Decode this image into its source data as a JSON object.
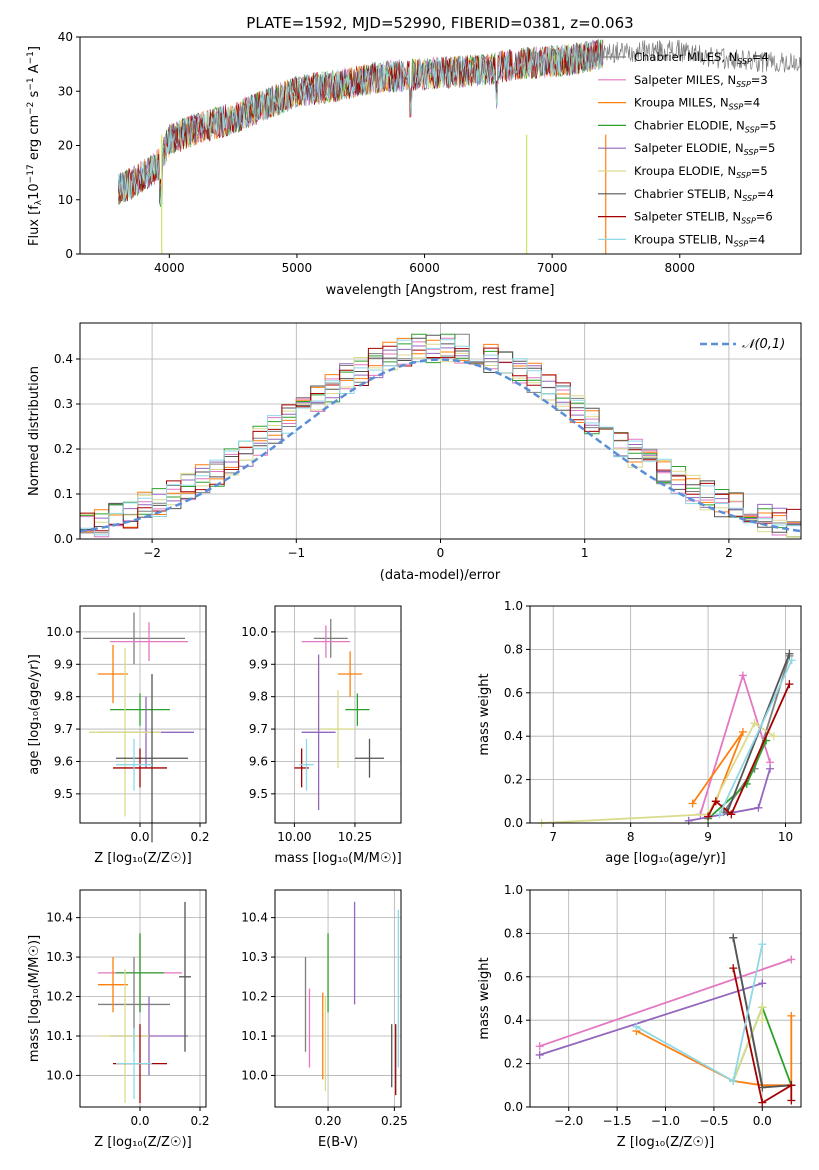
{
  "colors": [
    "#7f7f7f",
    "#e377c2",
    "#ff7f0e",
    "#2ca02c",
    "#9467bd",
    "#dbdb8d",
    "#555555",
    "#a50000",
    "#8fd8e6",
    "#3b7dd8",
    "#c7e86b"
  ],
  "chart_data": [
    {
      "type": "line",
      "title": "PLATE=1592, MJD=52990, FIBERID=0381, z=0.063",
      "xlabel": "wavelength [Angstrom, rest frame]",
      "ylabel": "Flux [fλ10⁻¹⁷ erg cm⁻² s⁻¹ A⁻¹]",
      "xlim": [
        3300,
        8950
      ],
      "ylim": [
        0,
        40
      ],
      "xticks": [
        4000,
        5000,
        6000,
        7000,
        8000
      ],
      "yticks": [
        0,
        10,
        20,
        30,
        40
      ],
      "legend": "right",
      "series": [
        {
          "name": "Chabrier MILES, N_SSP=4"
        },
        {
          "name": "Salpeter MILES, N_SSP=3"
        },
        {
          "name": "Kroupa MILES, N_SSP=4"
        },
        {
          "name": "Chabrier ELODIE, N_SSP=5"
        },
        {
          "name": "Salpeter ELODIE, N_SSP=5"
        },
        {
          "name": "Kroupa ELODIE, N_SSP=5"
        },
        {
          "name": "Chabrier STELIB, N_SSP=4"
        },
        {
          "name": "Salpeter STELIB, N_SSP=6"
        },
        {
          "name": "Kroupa STELIB, N_SSP=4"
        }
      ],
      "continuum": {
        "x": [
          3600,
          3700,
          3900,
          4000,
          4200,
          4500,
          4800,
          5000,
          5300,
          5600,
          5900,
          6200,
          6500,
          6700,
          7000,
          7200,
          7300,
          7400,
          7700,
          8000,
          8300,
          8600,
          8900
        ],
        "y": [
          12,
          13,
          16,
          21,
          23,
          25,
          28,
          30,
          31,
          32.5,
          33,
          33.5,
          34,
          35,
          35.5,
          36,
          36.5,
          37,
          37.5,
          37.5,
          36,
          35.5,
          35
        ]
      },
      "data_spectrum": {
        "x_start": 7200,
        "x_end": 8950
      }
    },
    {
      "type": "step",
      "xlabel": "(data-model)/error",
      "ylabel": "Normed distribution",
      "xlim": [
        -2.5,
        2.5
      ],
      "ylim": [
        0,
        0.48
      ],
      "xticks": [
        -2,
        -1,
        0,
        1,
        2
      ],
      "yticks": [
        0.0,
        0.1,
        0.2,
        0.3,
        0.4
      ],
      "grid": true,
      "legend": "top-right",
      "reference": {
        "label": "𝒩(0,1)",
        "mean": 0,
        "sigma": 1
      },
      "bin_width": 0.1
    },
    {
      "type": "errorbar",
      "xlabel": "Z [log₁₀(Z/Z☉)]",
      "ylabel": "age  [log₁₀(age/yr)]",
      "xlim": [
        -0.2,
        0.22
      ],
      "ylim": [
        9.41,
        10.08
      ],
      "xticks": [
        0.0,
        0.2
      ],
      "yticks": [
        9.5,
        9.6,
        9.7,
        9.8,
        9.9,
        10.0
      ],
      "grid": true,
      "points": [
        {
          "x": -0.02,
          "y": 9.98,
          "xerr": 0.17,
          "yerr": 0.08
        },
        {
          "x": 0.03,
          "y": 9.97,
          "xerr": 0.13,
          "yerr": 0.06
        },
        {
          "x": -0.09,
          "y": 9.87,
          "xerr": 0.05,
          "yerr": 0.09
        },
        {
          "x": 0.0,
          "y": 9.76,
          "xerr": 0.1,
          "yerr": 0.05
        },
        {
          "x": 0.02,
          "y": 9.69,
          "xerr": 0.16,
          "yerr": 0.11
        },
        {
          "x": -0.05,
          "y": 9.69,
          "xerr": 0.12,
          "yerr": 0.26
        },
        {
          "x": 0.04,
          "y": 9.61,
          "xerr": 0.12,
          "yerr": 0.26
        },
        {
          "x": 0.0,
          "y": 9.58,
          "xerr": 0.09,
          "yerr": 0.06
        },
        {
          "x": -0.02,
          "y": 9.59,
          "xerr": 0.06,
          "yerr": 0.08
        }
      ]
    },
    {
      "type": "errorbar",
      "xlabel": "mass [log₁₀(M/M☉)]",
      "ylabel": "",
      "xlim": [
        9.92,
        10.44
      ],
      "ylim": [
        9.41,
        10.08
      ],
      "xticks": [
        10.0,
        10.25
      ],
      "xtick_labels": [
        "10.00",
        "10.25"
      ],
      "yticks": [
        9.5,
        9.6,
        9.7,
        9.8,
        9.9,
        10.0
      ],
      "grid": true,
      "points": [
        {
          "x": 10.15,
          "y": 9.98,
          "xerr": 0.07,
          "yerr": 0.06
        },
        {
          "x": 10.13,
          "y": 9.97,
          "xerr": 0.1,
          "yerr": 0.05
        },
        {
          "x": 10.23,
          "y": 9.87,
          "xerr": 0.05,
          "yerr": 0.07
        },
        {
          "x": 10.26,
          "y": 9.76,
          "xerr": 0.05,
          "yerr": 0.05
        },
        {
          "x": 10.1,
          "y": 9.69,
          "xerr": 0.07,
          "yerr": 0.24
        },
        {
          "x": 10.18,
          "y": 9.7,
          "xerr": 0.07,
          "yerr": 0.12
        },
        {
          "x": 10.31,
          "y": 9.61,
          "xerr": 0.06,
          "yerr": 0.06
        },
        {
          "x": 10.03,
          "y": 9.58,
          "xerr": 0.03,
          "yerr": 0.06
        },
        {
          "x": 10.05,
          "y": 9.59,
          "xerr": 0.03,
          "yerr": 0.08
        }
      ]
    },
    {
      "type": "line",
      "xlabel": "age  [log₁₀(age/yr)]",
      "ylabel": "mass weight",
      "xlim": [
        6.7,
        10.2
      ],
      "ylim": [
        0,
        1.0
      ],
      "xticks": [
        7,
        8,
        9,
        10
      ],
      "yticks": [
        0.0,
        0.2,
        0.4,
        0.6,
        0.8,
        1.0
      ],
      "grid": true,
      "series": [
        {
          "x": [
            9.2,
            9.6,
            10.05
          ],
          "y": [
            0.05,
            0.25,
            0.77
          ]
        },
        {
          "x": [
            8.9,
            9.45,
            9.8
          ],
          "y": [
            0.04,
            0.68,
            0.28
          ]
        },
        {
          "x": [
            8.8,
            9.45,
            9.1
          ],
          "y": [
            0.09,
            0.42,
            0.1
          ]
        },
        {
          "x": [
            9.0,
            9.5,
            9.75
          ],
          "y": [
            0.02,
            0.18,
            0.38
          ]
        },
        {
          "x": [
            8.75,
            9.65,
            9.8
          ],
          "y": [
            0.01,
            0.07,
            0.25
          ]
        },
        {
          "x": [
            6.85,
            9.0,
            9.6,
            9.85
          ],
          "y": [
            0.0,
            0.04,
            0.46,
            0.4
          ]
        },
        {
          "x": [
            9.25,
            10.05
          ],
          "y": [
            0.05,
            0.78
          ]
        },
        {
          "x": [
            9.0,
            9.1,
            9.3,
            10.05
          ],
          "y": [
            0.03,
            0.1,
            0.04,
            0.64
          ]
        },
        {
          "x": [
            9.15,
            10.08
          ],
          "y": [
            0.04,
            0.75
          ]
        }
      ]
    },
    {
      "type": "errorbar",
      "xlabel": "Z [log₁₀(Z/Z☉)]",
      "ylabel": "mass [log₁₀(M/M☉)]",
      "xlim": [
        -0.2,
        0.22
      ],
      "ylim": [
        9.92,
        10.47
      ],
      "xticks": [
        0.0,
        0.2
      ],
      "yticks": [
        10.0,
        10.1,
        10.2,
        10.3,
        10.4
      ],
      "grid": true,
      "points": [
        {
          "x": -0.02,
          "y": 10.18,
          "xerr": 0.12,
          "yerr": 0.12
        },
        {
          "x": 0.0,
          "y": 10.26,
          "xerr": 0.14,
          "yerr": 0.1
        },
        {
          "x": -0.09,
          "y": 10.23,
          "xerr": 0.05,
          "yerr": 0.07
        },
        {
          "x": 0.0,
          "y": 10.26,
          "xerr": 0.08,
          "yerr": 0.1
        },
        {
          "x": 0.03,
          "y": 10.1,
          "xerr": 0.13,
          "yerr": 0.1
        },
        {
          "x": -0.05,
          "y": 10.1,
          "xerr": 0.08,
          "yerr": 0.17
        },
        {
          "x": 0.15,
          "y": 10.25,
          "xerr": 0.02,
          "yerr": 0.19
        },
        {
          "x": 0.0,
          "y": 10.03,
          "xerr": 0.09,
          "yerr": 0.1
        },
        {
          "x": -0.02,
          "y": 10.03,
          "xerr": 0.06,
          "yerr": 0.09
        }
      ]
    },
    {
      "type": "errorbar",
      "xlabel": "E(B-V)",
      "ylabel": "",
      "xlim": [
        0.16,
        0.255
      ],
      "ylim": [
        9.92,
        10.47
      ],
      "xticks": [
        0.2,
        0.25
      ],
      "xtick_labels": [
        "0.20",
        "0.25"
      ],
      "yticks": [
        10.0,
        10.1,
        10.2,
        10.3,
        10.4
      ],
      "grid": true,
      "points": [
        {
          "x": 0.183,
          "y": 10.18,
          "yerr": 0.12
        },
        {
          "x": 0.186,
          "y": 10.12,
          "yerr": 0.1
        },
        {
          "x": 0.196,
          "y": 10.1,
          "yerr": 0.11
        },
        {
          "x": 0.2,
          "y": 10.26,
          "yerr": 0.1
        },
        {
          "x": 0.22,
          "y": 10.31,
          "yerr": 0.13
        },
        {
          "x": 0.198,
          "y": 10.08,
          "yerr": 0.12
        },
        {
          "x": 0.248,
          "y": 10.05,
          "yerr": 0.08
        },
        {
          "x": 0.251,
          "y": 10.04,
          "yerr": 0.09
        },
        {
          "x": 0.253,
          "y": 10.22,
          "yerr": 0.2
        }
      ]
    },
    {
      "type": "line",
      "xlabel": "Z [log₁₀(Z/Z☉)]",
      "ylabel": "mass weight",
      "xlim": [
        -2.4,
        0.4
      ],
      "ylim": [
        0,
        1.0
      ],
      "xticks": [
        -2.0,
        -1.5,
        -1.0,
        -0.5,
        0.0
      ],
      "yticks": [
        0.0,
        0.2,
        0.4,
        0.6,
        0.8,
        1.0
      ],
      "grid": true,
      "series": [
        {
          "x": [
            -0.3,
            0.0,
            0.3
          ],
          "y": [
            0.78,
            0.1,
            0.1
          ]
        },
        {
          "x": [
            -2.3,
            0.3
          ],
          "y": [
            0.28,
            0.68
          ]
        },
        {
          "x": [
            -1.3,
            -0.3,
            0.0,
            0.3,
            0.3
          ],
          "y": [
            0.35,
            0.12,
            0.1,
            0.1,
            0.42
          ]
        },
        {
          "x": [
            -0.3,
            0.0,
            0.3
          ],
          "y": [
            0.12,
            0.46,
            0.1
          ]
        },
        {
          "x": [
            -2.3,
            0.0
          ],
          "y": [
            0.24,
            0.57
          ]
        },
        {
          "x": [
            -0.3,
            0.0,
            0.0
          ],
          "y": [
            0.12,
            0.46,
            0.4
          ]
        },
        {
          "x": [
            -0.3,
            0.0,
            0.3
          ],
          "y": [
            0.78,
            0.09,
            0.1
          ]
        },
        {
          "x": [
            -0.3,
            0.0,
            0.3,
            0.3
          ],
          "y": [
            0.64,
            0.02,
            0.1,
            0.03
          ]
        },
        {
          "x": [
            -1.3,
            -0.3,
            0.0
          ],
          "y": [
            0.37,
            0.12,
            0.75
          ]
        }
      ]
    }
  ]
}
